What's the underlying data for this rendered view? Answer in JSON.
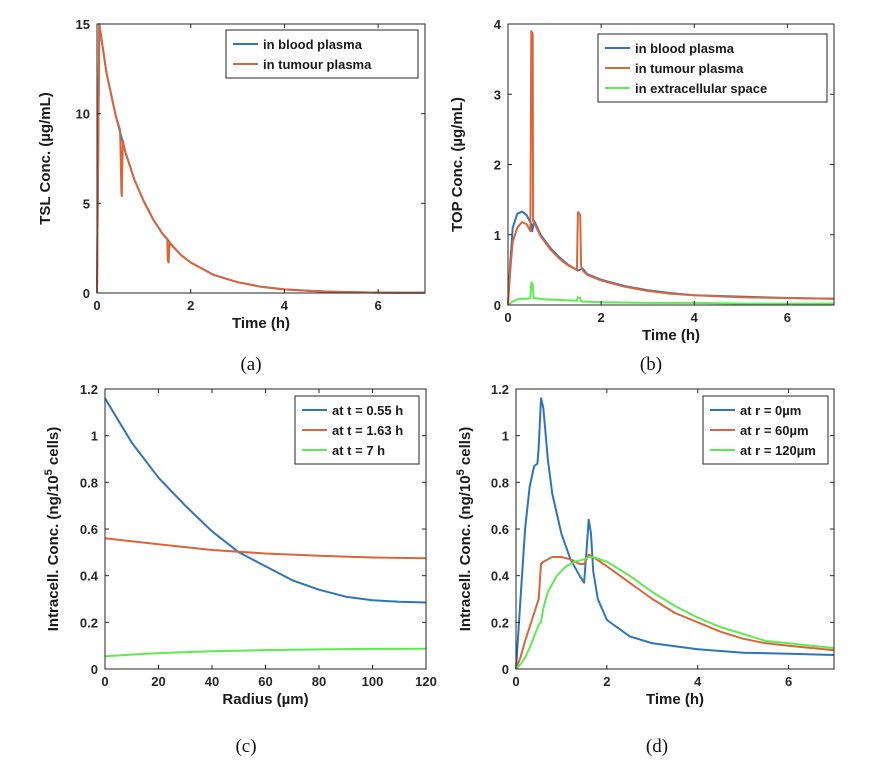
{
  "colors": {
    "blue": "#2f75b5",
    "orange": "#d8663a",
    "green": "#5eea52",
    "axis": "#262626"
  },
  "chart_data": [
    {
      "type": "line",
      "caption": "(a)",
      "xlabel": "Time (h)",
      "ylabel": "TSL Conc. (µg/mL)",
      "xlim": [
        0,
        7
      ],
      "ylim": [
        0,
        15
      ],
      "xticks": [
        0,
        2,
        4,
        6
      ],
      "yticks": [
        0,
        5,
        10,
        15
      ],
      "legend": "top-right",
      "series": [
        {
          "name": "in blood plasma",
          "color": "blue",
          "x": [
            0,
            0.05,
            0.2,
            0.4,
            0.48,
            0.5,
            0.6,
            0.8,
            1.0,
            1.2,
            1.4,
            1.5,
            1.6,
            1.8,
            2.0,
            2.5,
            3.0,
            3.5,
            4.0,
            4.5,
            5.0,
            5.5,
            6.0,
            6.5,
            7.0
          ],
          "y": [
            0,
            15,
            12.3,
            9.9,
            9.1,
            8.9,
            7.9,
            6.3,
            5.1,
            4.1,
            3.3,
            3.0,
            2.65,
            2.1,
            1.7,
            1.0,
            0.6,
            0.35,
            0.2,
            0.12,
            0.07,
            0.04,
            0.02,
            0.01,
            0.01
          ]
        },
        {
          "name": "in tumour plasma",
          "color": "orange",
          "x": [
            0,
            0.05,
            0.2,
            0.4,
            0.49,
            0.5,
            0.52,
            0.53,
            0.55,
            0.6,
            0.8,
            1.0,
            1.2,
            1.4,
            1.5,
            1.51,
            1.53,
            1.55,
            1.6,
            1.8,
            2.0,
            2.5,
            3.0,
            3.5,
            4.0,
            4.5,
            5.0,
            5.5,
            6.0,
            6.5,
            7.0
          ],
          "y": [
            0,
            15,
            12.3,
            9.9,
            9.1,
            8.4,
            5.6,
            5.4,
            8.5,
            7.9,
            6.3,
            5.1,
            4.1,
            3.3,
            3.0,
            1.8,
            1.7,
            2.85,
            2.65,
            2.1,
            1.7,
            1.0,
            0.6,
            0.35,
            0.2,
            0.12,
            0.07,
            0.04,
            0.02,
            0.01,
            0.01
          ]
        }
      ]
    },
    {
      "type": "line",
      "caption": "(b)",
      "xlabel": "Time (h)",
      "ylabel": "TOP Conc. (µg/mL)",
      "xlim": [
        0,
        7
      ],
      "ylim": [
        0,
        4
      ],
      "xticks": [
        0,
        2,
        4,
        6
      ],
      "yticks": [
        0,
        1,
        2,
        3,
        4
      ],
      "legend": "top-right",
      "series": [
        {
          "name": "in blood plasma",
          "color": "blue",
          "x": [
            0,
            0.05,
            0.1,
            0.2,
            0.3,
            0.4,
            0.5,
            0.52,
            0.56,
            0.7,
            0.9,
            1.1,
            1.3,
            1.5,
            1.6,
            1.7,
            2.0,
            2.5,
            3.0,
            3.5,
            4.0,
            5.0,
            6.0,
            7.0
          ],
          "y": [
            0,
            0.6,
            1.1,
            1.3,
            1.33,
            1.28,
            1.15,
            1.05,
            1.2,
            1.0,
            0.82,
            0.68,
            0.57,
            0.49,
            0.52,
            0.44,
            0.36,
            0.27,
            0.21,
            0.17,
            0.14,
            0.12,
            0.1,
            0.09
          ]
        },
        {
          "name": "in tumour plasma",
          "color": "orange",
          "x": [
            0,
            0.05,
            0.1,
            0.2,
            0.3,
            0.4,
            0.48,
            0.5,
            0.51,
            0.53,
            0.54,
            0.56,
            0.7,
            0.9,
            1.1,
            1.3,
            1.48,
            1.5,
            1.51,
            1.55,
            1.57,
            1.62,
            1.7,
            2.0,
            2.5,
            3.0,
            3.5,
            4.0,
            5.0,
            6.0,
            7.0
          ],
          "y": [
            0,
            0.5,
            0.9,
            1.1,
            1.18,
            1.15,
            1.05,
            3.9,
            3.88,
            3.85,
            1.2,
            1.17,
            0.98,
            0.8,
            0.66,
            0.56,
            0.5,
            1.32,
            1.32,
            1.28,
            0.55,
            0.48,
            0.43,
            0.35,
            0.26,
            0.2,
            0.16,
            0.14,
            0.11,
            0.1,
            0.09
          ]
        },
        {
          "name": "in extracellular space",
          "color": "green",
          "x": [
            0,
            0.1,
            0.2,
            0.3,
            0.45,
            0.48,
            0.5,
            0.53,
            0.55,
            0.8,
            1.2,
            1.48,
            1.5,
            1.55,
            1.57,
            2.0,
            3.0,
            4.0,
            5.0,
            6.0,
            7.0
          ],
          "y": [
            0,
            0.05,
            0.08,
            0.09,
            0.09,
            0.1,
            0.32,
            0.3,
            0.1,
            0.08,
            0.07,
            0.06,
            0.11,
            0.1,
            0.05,
            0.04,
            0.03,
            0.03,
            0.02,
            0.02,
            0.02
          ]
        }
      ]
    },
    {
      "type": "line",
      "caption": "(c)",
      "xlabel": "Radius (µm)",
      "ylabel": "Intracell. Conc. (ng/10",
      "ylabel_sup": "5",
      "ylabel_tail": " cells)",
      "xlim": [
        0,
        120
      ],
      "ylim": [
        0,
        1.2
      ],
      "xticks": [
        0,
        20,
        40,
        60,
        80,
        100,
        120
      ],
      "yticks": [
        0,
        0.2,
        0.4,
        0.6,
        0.8,
        1,
        1.2
      ],
      "legend": "top-right",
      "series": [
        {
          "name": "at t = 0.55 h",
          "color": "blue",
          "x": [
            0,
            10,
            20,
            30,
            40,
            50,
            60,
            70,
            80,
            90,
            100,
            110,
            120
          ],
          "y": [
            1.16,
            0.97,
            0.82,
            0.7,
            0.59,
            0.5,
            0.44,
            0.38,
            0.34,
            0.31,
            0.295,
            0.288,
            0.285
          ]
        },
        {
          "name": "at t = 1.63 h",
          "color": "orange",
          "x": [
            0,
            20,
            40,
            60,
            80,
            100,
            120
          ],
          "y": [
            0.56,
            0.535,
            0.51,
            0.495,
            0.485,
            0.478,
            0.475
          ]
        },
        {
          "name": "at t = 7 h",
          "color": "green",
          "x": [
            0,
            20,
            40,
            60,
            80,
            100,
            120
          ],
          "y": [
            0.055,
            0.068,
            0.076,
            0.081,
            0.084,
            0.086,
            0.087
          ]
        }
      ]
    },
    {
      "type": "line",
      "caption": "(d)",
      "xlabel": "Time (h)",
      "ylabel": "Intracell. Conc. (ng/10",
      "ylabel_sup": "5",
      "ylabel_tail": " cells)",
      "xlim": [
        0,
        7
      ],
      "ylim": [
        0,
        1.2
      ],
      "xticks": [
        0,
        2,
        4,
        6
      ],
      "yticks": [
        0,
        0.2,
        0.4,
        0.6,
        0.8,
        1,
        1.2
      ],
      "legend": "top-right",
      "series": [
        {
          "name": "at r = 0µm",
          "color": "blue",
          "x": [
            0,
            0.1,
            0.2,
            0.3,
            0.4,
            0.47,
            0.5,
            0.55,
            0.6,
            0.7,
            0.8,
            1.0,
            1.2,
            1.4,
            1.5,
            1.55,
            1.6,
            1.65,
            1.7,
            1.8,
            2.0,
            2.5,
            3.0,
            4.0,
            5.0,
            6.0,
            7.0
          ],
          "y": [
            0,
            0.3,
            0.6,
            0.78,
            0.87,
            0.88,
            0.95,
            1.16,
            1.12,
            0.9,
            0.75,
            0.58,
            0.47,
            0.4,
            0.37,
            0.5,
            0.64,
            0.58,
            0.42,
            0.3,
            0.21,
            0.14,
            0.11,
            0.085,
            0.07,
            0.065,
            0.06
          ]
        },
        {
          "name": "at r = 60µm",
          "color": "orange",
          "x": [
            0,
            0.1,
            0.2,
            0.3,
            0.4,
            0.5,
            0.55,
            0.6,
            0.8,
            1.0,
            1.2,
            1.4,
            1.5,
            1.6,
            1.7,
            2.0,
            2.5,
            3.0,
            3.5,
            4.0,
            4.5,
            5.0,
            5.5,
            6.0,
            6.5,
            7.0
          ],
          "y": [
            0,
            0.05,
            0.12,
            0.18,
            0.24,
            0.3,
            0.45,
            0.46,
            0.48,
            0.48,
            0.47,
            0.45,
            0.45,
            0.49,
            0.48,
            0.44,
            0.37,
            0.3,
            0.24,
            0.2,
            0.16,
            0.13,
            0.11,
            0.1,
            0.09,
            0.08
          ]
        },
        {
          "name": "at r = 120µm",
          "color": "green",
          "x": [
            0,
            0.1,
            0.2,
            0.3,
            0.4,
            0.5,
            0.55,
            0.6,
            0.7,
            0.9,
            1.1,
            1.3,
            1.5,
            1.6,
            1.7,
            2.0,
            2.5,
            3.0,
            3.5,
            4.0,
            4.5,
            5.0,
            5.5,
            6.0,
            6.5,
            7.0
          ],
          "y": [
            0,
            0.02,
            0.05,
            0.09,
            0.14,
            0.19,
            0.2,
            0.26,
            0.33,
            0.4,
            0.44,
            0.46,
            0.47,
            0.48,
            0.48,
            0.46,
            0.4,
            0.33,
            0.27,
            0.22,
            0.18,
            0.15,
            0.12,
            0.11,
            0.1,
            0.09
          ]
        }
      ]
    }
  ]
}
